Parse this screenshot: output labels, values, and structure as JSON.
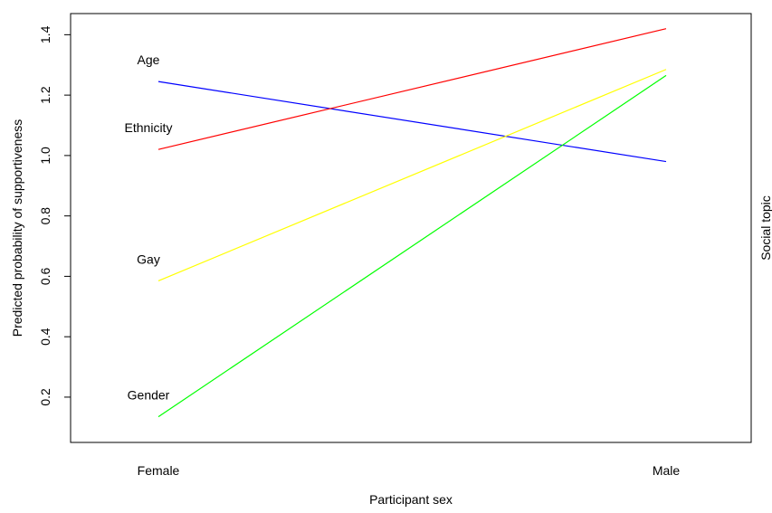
{
  "chart_data": {
    "type": "line",
    "categories": [
      "Female",
      "Male"
    ],
    "xlabel": "Participant sex",
    "ylabel": "Predicted probability of supportiveness",
    "right_label": "Social topic",
    "ylim": [
      0.05,
      1.47
    ],
    "yticks": [
      "0.2",
      "0.4",
      "0.6",
      "0.8",
      "1.0",
      "1.2",
      "1.4"
    ],
    "grid": false,
    "legend": "none (series labeled inline at left)",
    "series": [
      {
        "name": "Age",
        "color": "#0000ff",
        "values": [
          1.245,
          0.98
        ]
      },
      {
        "name": "Ethnicity",
        "color": "#ff0000",
        "values": [
          1.02,
          1.42
        ]
      },
      {
        "name": "Gay",
        "color": "#ffff00",
        "values": [
          0.585,
          1.285
        ]
      },
      {
        "name": "Gender",
        "color": "#00ff00",
        "values": [
          0.135,
          1.265
        ]
      }
    ]
  }
}
